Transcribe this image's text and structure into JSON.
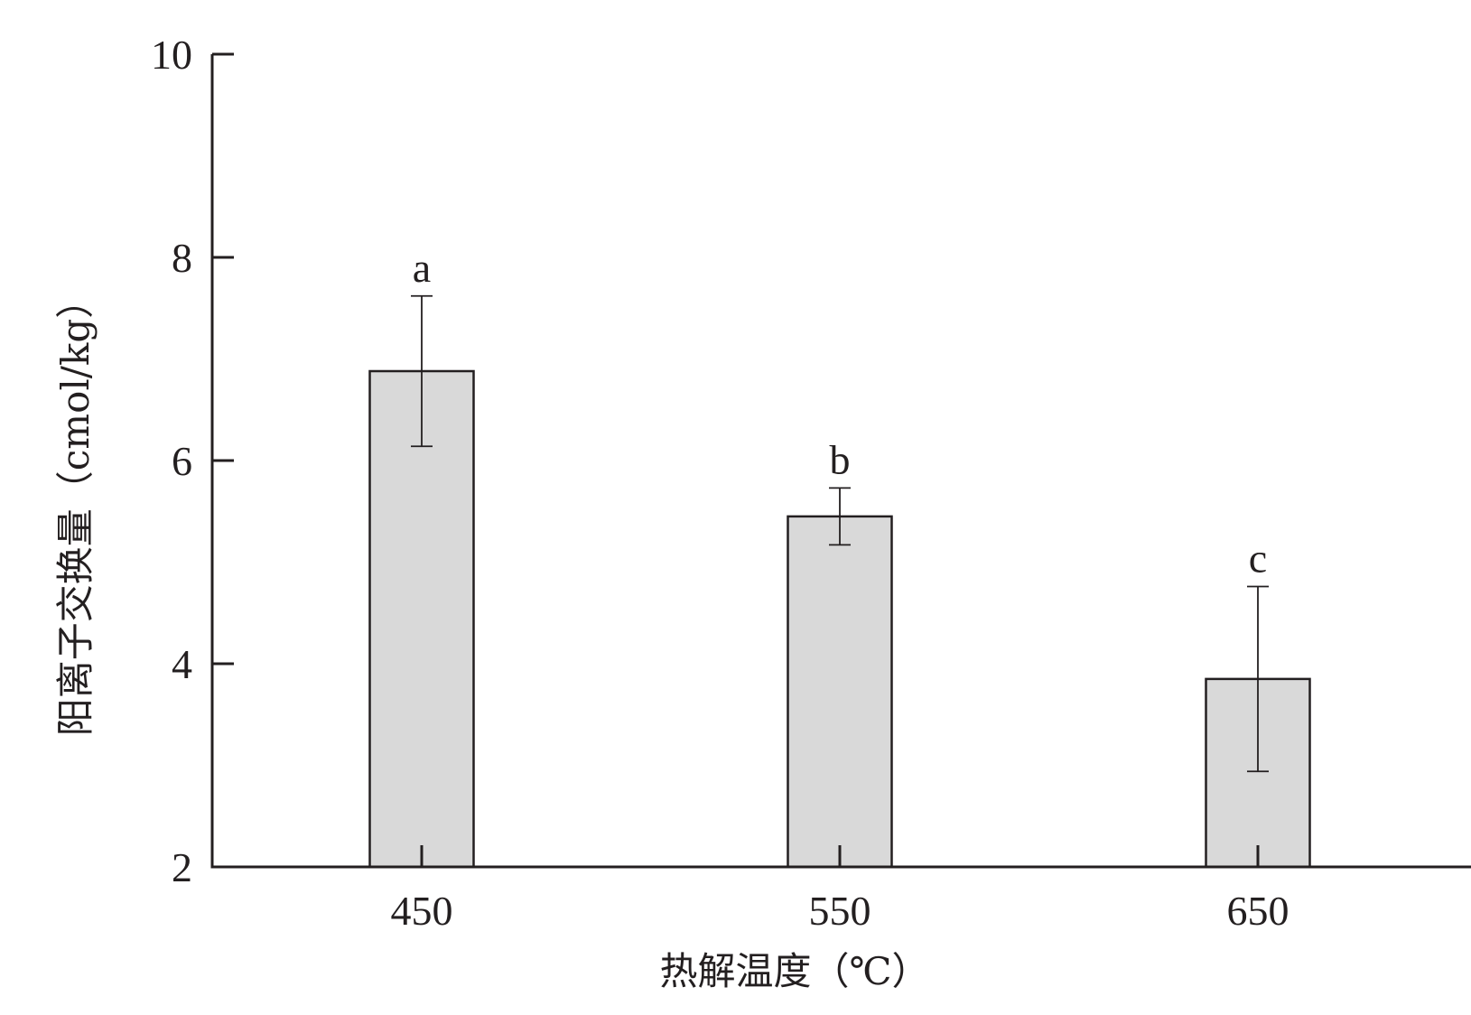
{
  "chart_data": {
    "type": "bar",
    "title": "",
    "xlabel": "热解温度（℃）",
    "ylabel": "阳离子交换量（cmol/kg）",
    "categories": [
      "450",
      "550",
      "650"
    ],
    "values": [
      6.88,
      5.45,
      3.85
    ],
    "error": [
      0.74,
      0.28,
      0.91
    ],
    "significance": [
      "a",
      "b",
      "c"
    ],
    "ylim": [
      2,
      10
    ],
    "yticks": [
      "2",
      "4",
      "6",
      "8",
      "10"
    ],
    "grid": false,
    "legend": "none",
    "colors": {
      "bar_fill": "#d9d9d9",
      "bar_stroke": "#231f20",
      "axis": "#231f20"
    }
  }
}
